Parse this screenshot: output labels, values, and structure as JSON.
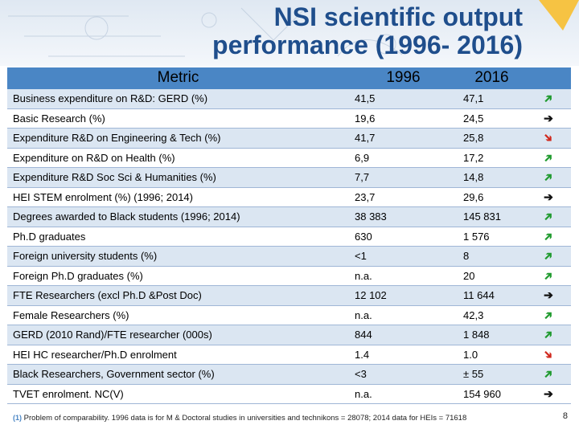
{
  "title": {
    "line1": "NSI scientific output",
    "line2": "performance (1996- 2016)"
  },
  "table": {
    "headers": [
      "Metric",
      "1996",
      "2016",
      ""
    ],
    "rows": [
      {
        "metric": "Business expenditure on R&D: GERD (%)",
        "v1996": "41,5",
        "v2016": "47,1",
        "trend": "up"
      },
      {
        "metric": "Basic Research (%)",
        "v1996": "19,6",
        "v2016": "24,5",
        "trend": "right"
      },
      {
        "metric": "Expenditure R&D on Engineering & Tech (%)",
        "v1996": "41,7",
        "v2016": "25,8",
        "trend": "down"
      },
      {
        "metric": "Expenditure on R&D on Health (%)",
        "v1996": "6,9",
        "v2016": "17,2",
        "trend": "up"
      },
      {
        "metric": "Expenditure R&D Soc Sci & Humanities (%)",
        "v1996": "7,7",
        "v2016": "14,8",
        "trend": "up"
      },
      {
        "metric": "HEI STEM enrolment (%) (1996; 2014)",
        "v1996": "23,7",
        "v2016": "29,6",
        "trend": "right"
      },
      {
        "metric": "Degrees awarded to Black students (1996; 2014)",
        "v1996": "38 383",
        "v2016": "145 831",
        "trend": "up"
      },
      {
        "metric": "Ph.D graduates",
        "v1996": "630",
        "v2016": "1 576",
        "trend": "up"
      },
      {
        "metric": "Foreign university students (%)",
        "v1996": "<1",
        "v2016": "8",
        "trend": "up"
      },
      {
        "metric": "Foreign Ph.D graduates (%)",
        "v1996": "n.a.",
        "v2016": "20",
        "trend": "up"
      },
      {
        "metric": "FTE Researchers (excl Ph.D &Post Doc)",
        "v1996": "12 102",
        "v2016": "11 644",
        "trend": "right"
      },
      {
        "metric": "Female Researchers (%)",
        "v1996": "n.a.",
        "v2016": "42,3",
        "trend": "up"
      },
      {
        "metric": "GERD (2010 Rand)/FTE researcher (000s)",
        "v1996": "844",
        "v2016": "1 848",
        "trend": "up"
      },
      {
        "metric": "HEI HC researcher/Ph.D enrolment",
        "v1996": "1.4",
        "v2016": "1.0",
        "trend": "down"
      },
      {
        "metric": "Black Researchers, Government sector (%)",
        "v1996": "<3",
        "v2016": "± 55",
        "trend": "up"
      },
      {
        "metric": "TVET enrolment. NC(V)",
        "v1996": "n.a.",
        "v2016": "154 960",
        "trend": "right"
      }
    ]
  },
  "footnote": {
    "marker": "(1)",
    "text": "Problem of comparability. 1996 data is for M & Doctoral studies in universities and technikons = 28078; 2014 data for HEIs = 71618"
  },
  "page_number": "8",
  "colors": {
    "header_bg": "#4a86c5",
    "row_odd": "#dbe6f2",
    "title": "#1f4e8c",
    "accent_triangle": "#f6c343"
  }
}
